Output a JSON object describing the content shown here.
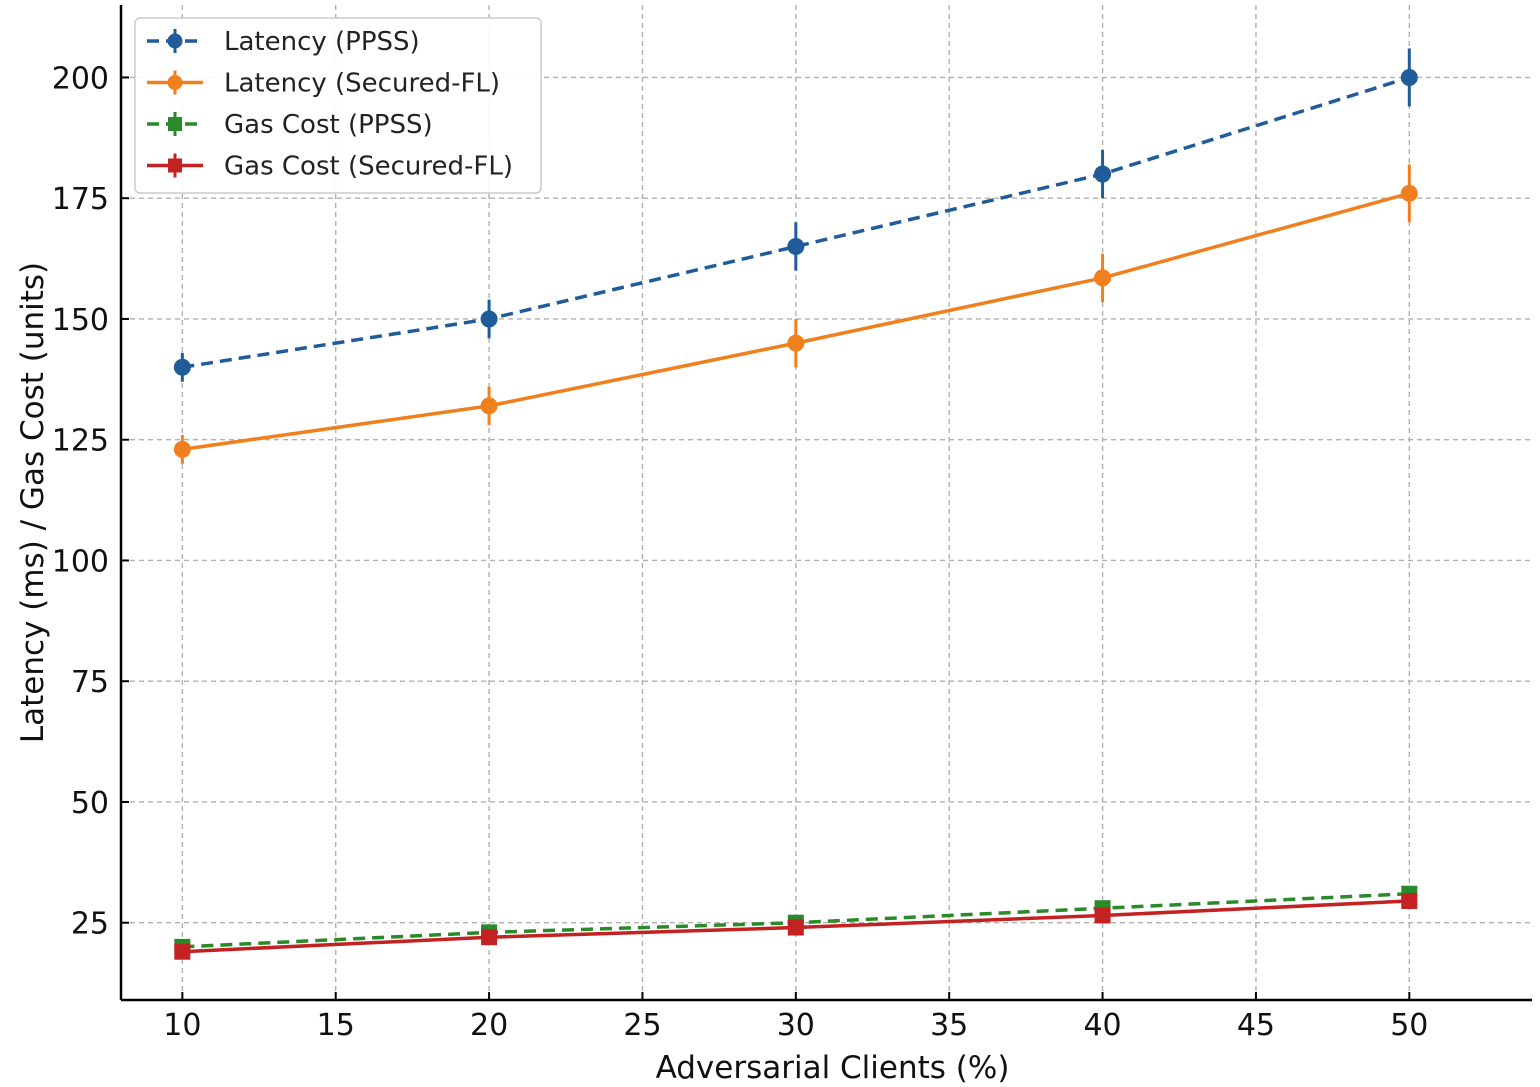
{
  "chart_data": {
    "type": "line",
    "title": "",
    "xlabel": "Adversarial Clients (%)",
    "ylabel": "Latency (ms) / Gas Cost (units)",
    "x": [
      10,
      20,
      30,
      40,
      50
    ],
    "xlim": [
      8,
      54
    ],
    "ylim": [
      9,
      215
    ],
    "xticks": [
      10,
      15,
      20,
      25,
      30,
      35,
      40,
      45,
      50
    ],
    "yticks": [
      25,
      50,
      75,
      100,
      125,
      150,
      175,
      200
    ],
    "grid": true,
    "legend_position": "top-left",
    "series": [
      {
        "name": "Latency (PPSS)",
        "values": [
          140,
          150,
          165,
          180,
          200
        ],
        "errors": [
          3,
          4,
          5,
          5,
          6
        ],
        "color": "#1f5c99",
        "line": "dashed",
        "marker": "circle"
      },
      {
        "name": "Latency (Secured-FL)",
        "values": [
          123,
          132,
          145,
          158.5,
          176
        ],
        "errors": [
          3,
          4,
          5,
          5,
          6
        ],
        "color": "#f07f1e",
        "line": "solid",
        "marker": "circle"
      },
      {
        "name": "Gas Cost (PPSS)",
        "values": [
          20,
          23,
          25,
          28,
          31
        ],
        "errors": [
          1,
          1,
          1,
          1,
          1
        ],
        "color": "#2a8a2a",
        "line": "dashed",
        "marker": "square"
      },
      {
        "name": "Gas Cost (Secured-FL)",
        "values": [
          19,
          22,
          24,
          26.5,
          29.5
        ],
        "errors": [
          1,
          1,
          1,
          1,
          1
        ],
        "color": "#c42222",
        "line": "solid",
        "marker": "square"
      }
    ]
  }
}
